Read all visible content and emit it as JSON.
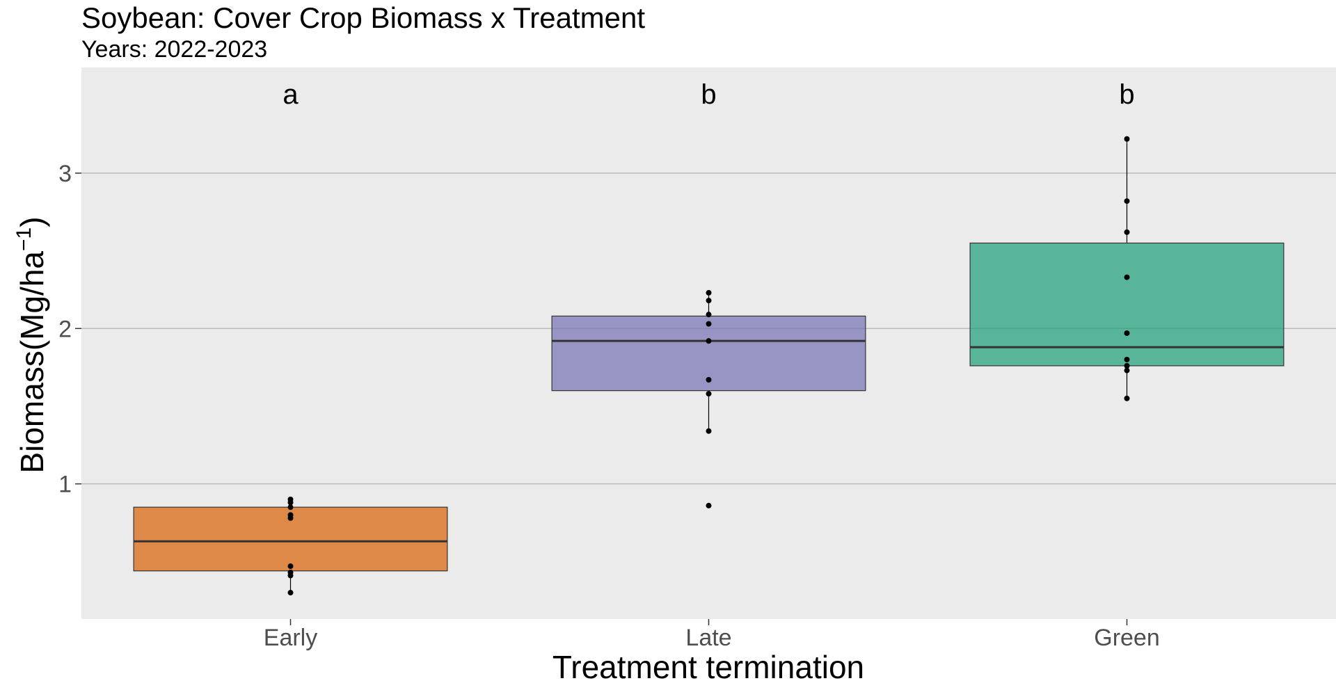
{
  "chart_data": {
    "type": "box",
    "title": "Soybean: Cover Crop Biomass x Treatment",
    "subtitle": "Years: 2022-2023",
    "xlabel": "Treatment termination",
    "ylabel": "Biomass(Mg/ha⁻¹)",
    "ylabel_parts": {
      "main": "Biomass(Mg/ha",
      "sup": "−1",
      "close": ")"
    },
    "ylim": [
      0.13,
      3.68
    ],
    "yticks": [
      1,
      2,
      3
    ],
    "grid": true,
    "categories": [
      "Early",
      "Late",
      "Green"
    ],
    "series": [
      {
        "category": "Early",
        "color": "#D95F02",
        "letter": "a",
        "q1": 0.44,
        "median": 0.63,
        "q3": 0.85,
        "whisker_low": 0.3,
        "whisker_high": 0.9,
        "points": [
          0.3,
          0.41,
          0.43,
          0.47,
          0.78,
          0.8,
          0.85,
          0.88,
          0.9
        ]
      },
      {
        "category": "Late",
        "color": "#7570B3",
        "letter": "b",
        "q1": 1.6,
        "median": 1.92,
        "q3": 2.08,
        "whisker_low": 1.34,
        "whisker_high": 2.23,
        "points": [
          0.86,
          1.34,
          1.58,
          1.67,
          1.92,
          2.03,
          2.09,
          2.18,
          2.23
        ]
      },
      {
        "category": "Green",
        "color": "#1B9E77",
        "letter": "b",
        "q1": 1.76,
        "median": 1.88,
        "q3": 2.55,
        "whisker_low": 1.55,
        "whisker_high": 3.22,
        "points": [
          1.55,
          1.73,
          1.76,
          1.8,
          1.97,
          2.33,
          2.62,
          2.82,
          3.22
        ]
      }
    ]
  }
}
